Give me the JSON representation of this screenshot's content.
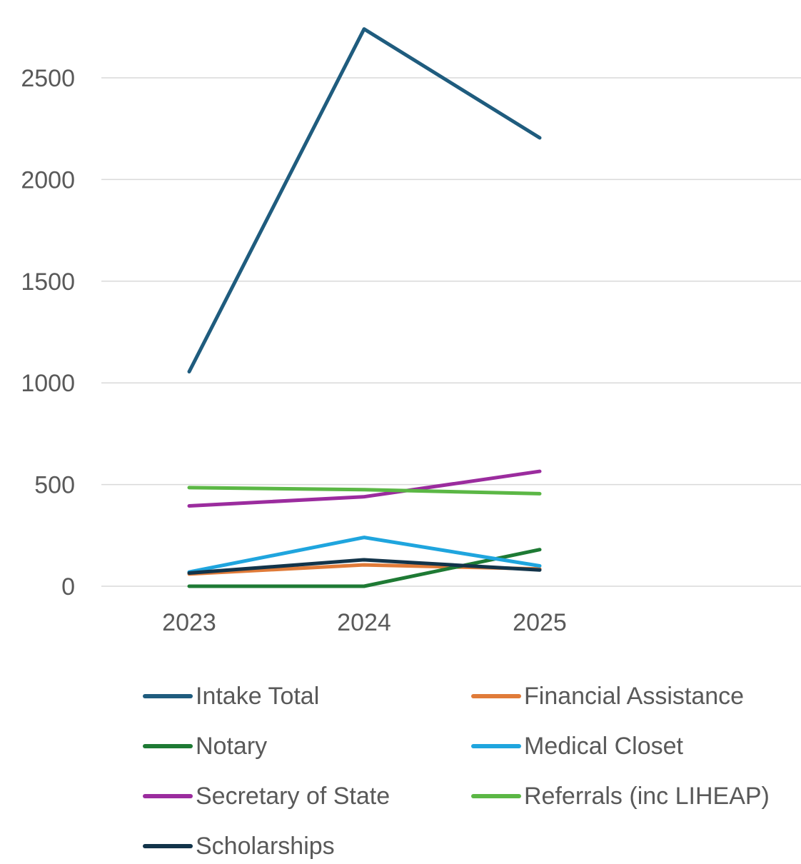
{
  "chart_data": {
    "type": "line",
    "title": "",
    "xlabel": "",
    "ylabel": "",
    "categories": [
      "2023",
      "2024",
      "2025"
    ],
    "ylim": [
      0,
      2500
    ],
    "yticks": [
      "0",
      "500",
      "1000",
      "1500",
      "2000",
      "2500"
    ],
    "grid": true,
    "legend_position": "bottom",
    "series": [
      {
        "name": "Intake Total",
        "color": "#1F5C7E",
        "values": [
          1055,
          2740,
          2205
        ]
      },
      {
        "name": "Financial Assistance",
        "color": "#E07B39",
        "values": [
          60,
          105,
          85
        ]
      },
      {
        "name": "Notary",
        "color": "#1E7A34",
        "values": [
          0,
          0,
          180
        ]
      },
      {
        "name": "Medical Closet",
        "color": "#1FA5DE",
        "values": [
          70,
          240,
          100
        ]
      },
      {
        "name": "Secretary of State",
        "color": "#9B2C9E",
        "values": [
          395,
          440,
          565
        ]
      },
      {
        "name": "Referrals (inc LIHEAP)",
        "color": "#5BB745",
        "values": [
          485,
          475,
          455
        ]
      },
      {
        "name": "Scholarships",
        "color": "#12344A",
        "values": [
          65,
          130,
          80
        ]
      }
    ]
  }
}
